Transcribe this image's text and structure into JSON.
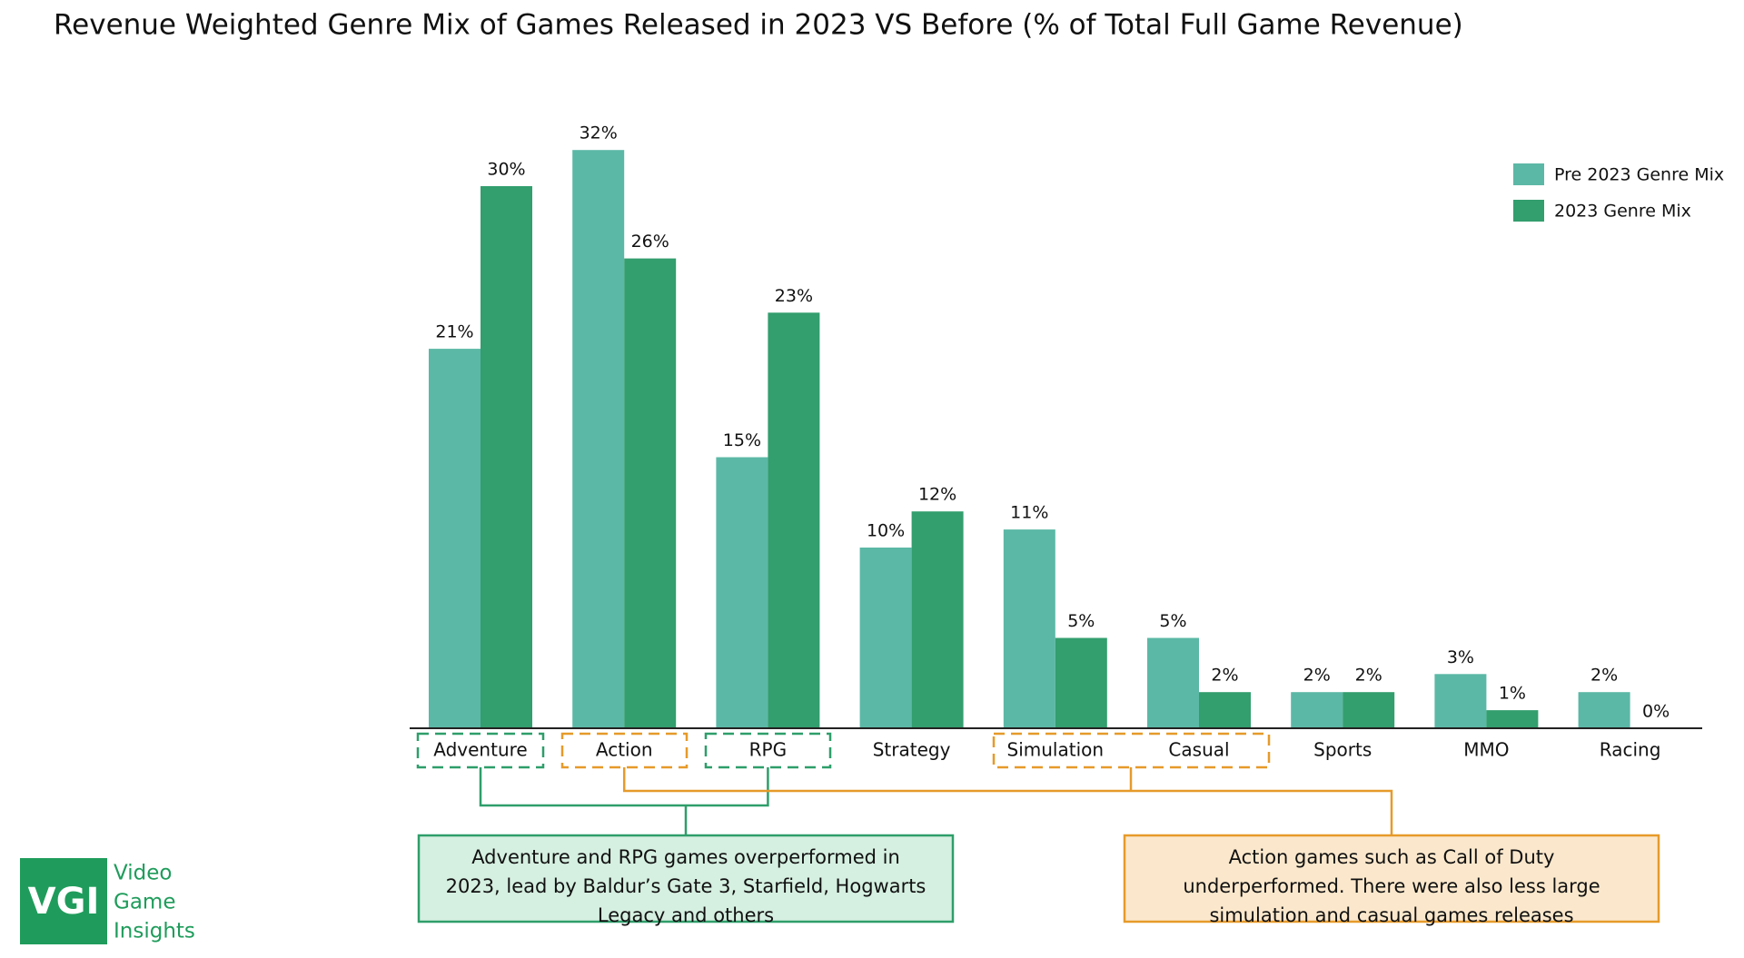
{
  "chart_data": {
    "type": "bar",
    "title": "Revenue Weighted Genre Mix of Games Released in 2023 VS Before (% of Total Full Game Revenue)",
    "categories": [
      "Adventure",
      "Action",
      "RPG",
      "Strategy",
      "Simulation",
      "Casual",
      "Sports",
      "MMO",
      "Racing"
    ],
    "series": [
      {
        "name": "Pre 2023 Genre Mix",
        "color": "#5bb8a6",
        "values": [
          21,
          32,
          15,
          10,
          11,
          5,
          2,
          3,
          2
        ],
        "value_labels": [
          "21%",
          "32%",
          "15%",
          "10%",
          "11%",
          "5%",
          "2%",
          "3%",
          "2%"
        ]
      },
      {
        "name": "2023 Genre Mix",
        "color": "#339e6e",
        "values": [
          30,
          26,
          23,
          12,
          5,
          2,
          2,
          1,
          0
        ],
        "value_labels": [
          "30%",
          "26%",
          "23%",
          "12%",
          "5%",
          "2%",
          "2%",
          "1%",
          "0%"
        ]
      }
    ],
    "legend": "top-right",
    "annotations": [
      {
        "lines": [
          "Adventure and RPG games overperformed in",
          "2023, lead by Baldur’s Gate 3, Starfield, Hogwarts",
          "Legacy and others"
        ]
      },
      {
        "lines": [
          "Action games such as Call of Duty",
          "underperformed. There were also less large",
          "simulation and casual games releases"
        ]
      }
    ]
  },
  "logo": {
    "mark": "VGI",
    "lines": [
      "Video",
      "Game",
      "Insights"
    ]
  }
}
